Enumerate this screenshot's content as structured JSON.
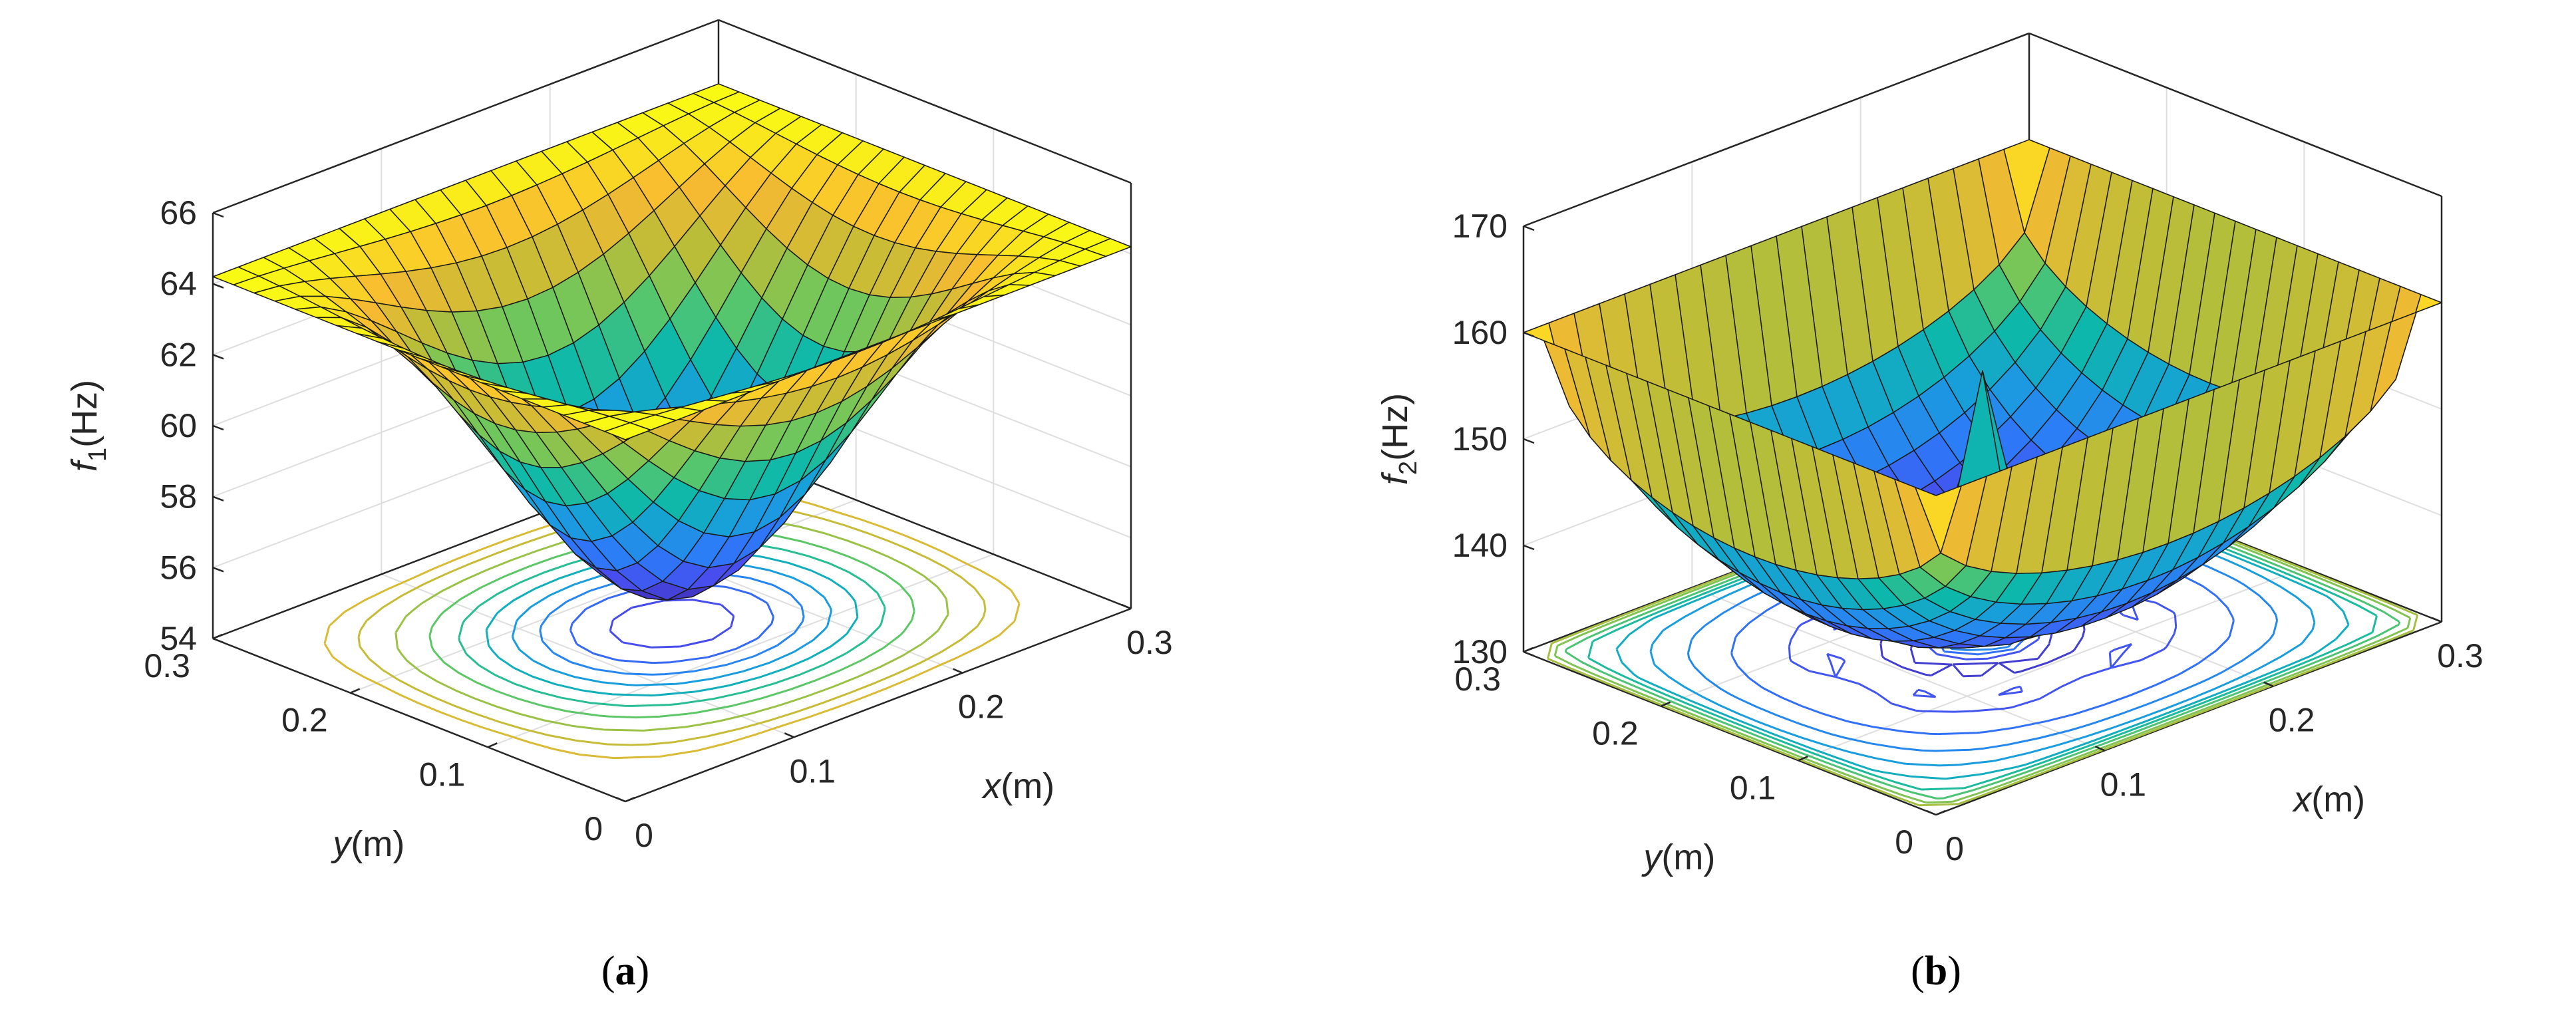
{
  "chart_data": [
    {
      "type": "surface3d",
      "id": "a",
      "panel_label": "a",
      "zlabel_symbol": "f",
      "zlabel_sub": "1",
      "zlabel_unit": "(Hz)",
      "xlabel_symbol": "x",
      "xlabel_unit": "(m)",
      "ylabel_symbol": "y",
      "ylabel_unit": "(m)",
      "x_range": [
        0,
        0.3
      ],
      "y_range": [
        0,
        0.3
      ],
      "z_range": [
        54,
        66
      ],
      "x_ticks": [
        "0",
        "0.1",
        "0.2",
        "0.3"
      ],
      "y_ticks": [
        "0",
        "0.1",
        "0.2",
        "0.3"
      ],
      "z_ticks": [
        "54",
        "56",
        "58",
        "60",
        "62",
        "64",
        "66"
      ],
      "grid_n": 21,
      "surface": {
        "kind": "bowl",
        "edge": 64.2,
        "min": 54.8
      },
      "contour_levels": [
        55.5,
        56.5,
        57.5,
        58.5,
        59.5,
        60.5,
        61.5,
        62.5,
        63.3,
        63.8
      ],
      "colormap": "parula"
    },
    {
      "type": "surface3d",
      "id": "b",
      "panel_label": "b",
      "zlabel_symbol": "f",
      "zlabel_sub": "2",
      "zlabel_unit": "(Hz)",
      "xlabel_symbol": "x",
      "xlabel_unit": "(m)",
      "ylabel_symbol": "y",
      "ylabel_unit": "(m)",
      "x_range": [
        0,
        0.3
      ],
      "y_range": [
        0,
        0.3
      ],
      "z_range": [
        130,
        170
      ],
      "x_ticks": [
        "0",
        "0.1",
        "0.2",
        "0.3"
      ],
      "y_ticks": [
        "0",
        "0.1",
        "0.2",
        "0.3"
      ],
      "z_ticks": [
        "130",
        "140",
        "150",
        "160",
        "170"
      ],
      "grid_n": 21,
      "surface": {
        "kind": "ring",
        "edge": 160,
        "min": 131,
        "center_peak": 155
      },
      "contour_levels": [
        133,
        136,
        139,
        142,
        145,
        148,
        151,
        154,
        157,
        159
      ],
      "colormap": "parula"
    }
  ]
}
